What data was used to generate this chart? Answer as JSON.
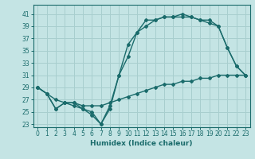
{
  "xlabel": "Humidex (Indice chaleur)",
  "bg_color": "#c4e4e4",
  "grid_color": "#a8cece",
  "line_color": "#1a6b6b",
  "xlim": [
    -0.5,
    23.5
  ],
  "ylim": [
    22.5,
    42.5
  ],
  "xticks": [
    0,
    1,
    2,
    3,
    4,
    5,
    6,
    7,
    8,
    9,
    10,
    11,
    12,
    13,
    14,
    15,
    16,
    17,
    18,
    19,
    20,
    21,
    22,
    23
  ],
  "yticks": [
    23,
    25,
    27,
    29,
    31,
    33,
    35,
    37,
    39,
    41
  ],
  "line_linear_y": [
    29,
    28,
    27,
    26.5,
    26.5,
    26,
    26,
    26,
    26.5,
    27,
    27.5,
    28,
    28.5,
    29,
    29.5,
    29.5,
    30,
    30,
    30.5,
    30.5,
    31,
    31,
    31,
    31
  ],
  "line_a_y": [
    29,
    28,
    25.5,
    26.5,
    26,
    25.5,
    24.5,
    23,
    25.5,
    31,
    34,
    38,
    40,
    40,
    40.5,
    40.5,
    40.5,
    40.5,
    40,
    40,
    39,
    35.5,
    32.5,
    31
  ],
  "line_b_y": [
    29,
    28,
    25.5,
    26.5,
    26.5,
    25.5,
    25,
    23,
    26,
    31,
    36,
    38,
    39,
    40,
    40.5,
    40.5,
    41,
    40.5,
    40,
    39.5,
    39,
    35.5,
    32.5,
    31
  ]
}
